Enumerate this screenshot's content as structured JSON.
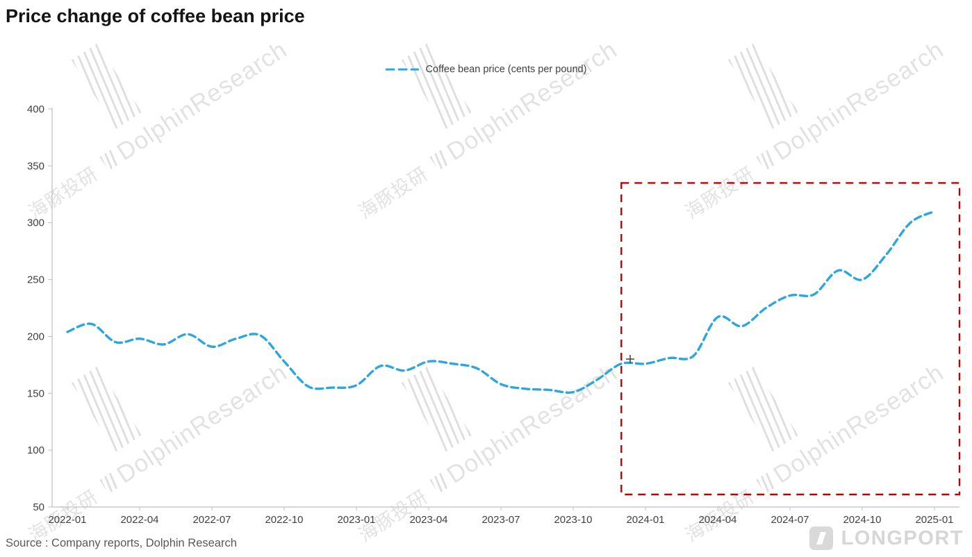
{
  "page": {
    "title": "Price change of coffee bean price",
    "source": "Source : Company reports, Dolphin Research",
    "logo_text": "LONGPORT",
    "watermark": {
      "cn": "海豚投研",
      "en": "DolphinResearch"
    }
  },
  "chart_data": {
    "type": "line",
    "title": "Price change of coffee bean price",
    "legend_label": "Coffee bean price (cents per pound)",
    "legend_position": "top-center",
    "line_style": "dashed",
    "line_color": "#2BA6DF",
    "grid": false,
    "ylim": [
      50,
      400
    ],
    "y_ticks": [
      50,
      100,
      150,
      200,
      250,
      300,
      350,
      400
    ],
    "x": [
      "2022-01",
      "2022-02",
      "2022-03",
      "2022-04",
      "2022-05",
      "2022-06",
      "2022-07",
      "2022-08",
      "2022-09",
      "2022-10",
      "2022-11",
      "2022-12",
      "2023-01",
      "2023-02",
      "2023-03",
      "2023-04",
      "2023-05",
      "2023-06",
      "2023-07",
      "2023-08",
      "2023-09",
      "2023-10",
      "2023-11",
      "2023-12",
      "2024-01",
      "2024-02",
      "2024-03",
      "2024-04",
      "2024-05",
      "2024-06",
      "2024-07",
      "2024-08",
      "2024-09",
      "2024-10",
      "2024-11",
      "2024-12",
      "2025-01"
    ],
    "x_tick_labels": [
      "2022-01",
      "2022-04",
      "2022-07",
      "2022-10",
      "2023-01",
      "2023-04",
      "2023-07",
      "2023-10",
      "2024-01",
      "2024-04",
      "2024-07",
      "2024-10",
      "2025-01"
    ],
    "values": [
      204,
      211,
      195,
      198,
      193,
      202,
      191,
      198,
      201,
      178,
      156,
      155,
      157,
      174,
      170,
      178,
      176,
      172,
      158,
      154,
      153,
      151,
      162,
      176,
      176,
      181,
      183,
      217,
      209,
      225,
      236,
      237,
      258,
      250,
      272,
      300,
      310
    ],
    "highlight_box": {
      "color": "#C00000",
      "x_start": "2023-12",
      "x_end": "2025-01",
      "y_min": 61,
      "y_max": 335
    }
  }
}
